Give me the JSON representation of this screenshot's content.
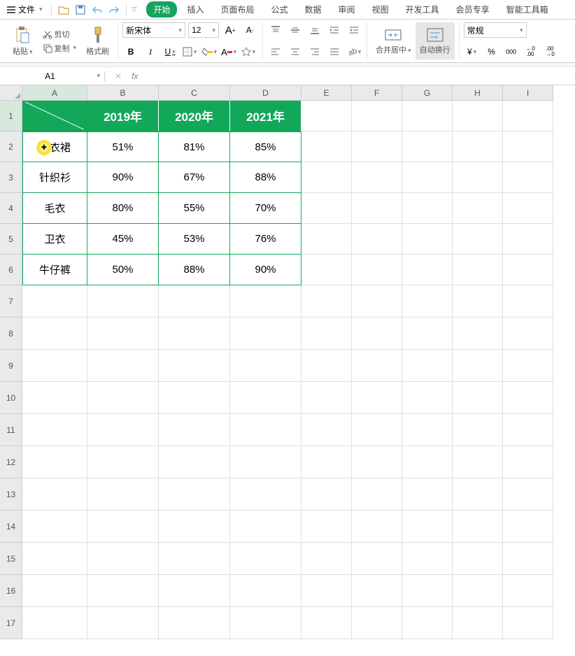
{
  "menu": {
    "file": "文件",
    "qat": [
      "open",
      "save",
      "undo",
      "redo"
    ],
    "tabs": [
      "开始",
      "插入",
      "页面布局",
      "公式",
      "数据",
      "审阅",
      "视图",
      "开发工具",
      "会员专享",
      "智能工具箱"
    ],
    "active_tab": 0
  },
  "ribbon": {
    "paste": "粘贴",
    "cut": "剪切",
    "copy": "复制",
    "format_painter": "格式刷",
    "font_name": "新宋体",
    "font_size": "12",
    "merge_center": "合并居中",
    "wrap_text": "自动换行",
    "number_format": "常规",
    "currency": "¥",
    "percent": "%",
    "thousands": "000",
    "dec_inc": "←0\n.00",
    "dec_dec": ".00\n→0"
  },
  "namebox": "A1",
  "formula": "",
  "columns": [
    "A",
    "B",
    "C",
    "D",
    "E",
    "F",
    "G",
    "H",
    "I"
  ],
  "rows": [
    "1",
    "2",
    "3",
    "4",
    "5",
    "6",
    "7",
    "8",
    "9",
    "10",
    "11",
    "12",
    "13",
    "14",
    "15",
    "16",
    "17"
  ],
  "table": {
    "header_bg": "#12a85a",
    "header_fg": "#ffffff",
    "border_color": "#12a85a",
    "headers": [
      "",
      "2019年",
      "2020年",
      "2021年"
    ],
    "row_labels": [
      "连衣裙",
      "针织衫",
      "毛衣",
      "卫衣",
      "牛仔裤"
    ],
    "data": [
      [
        "51%",
        "81%",
        "85%"
      ],
      [
        "90%",
        "67%",
        "88%"
      ],
      [
        "80%",
        "55%",
        "70%"
      ],
      [
        "45%",
        "53%",
        "76%"
      ],
      [
        "50%",
        "88%",
        "90%"
      ]
    ]
  }
}
